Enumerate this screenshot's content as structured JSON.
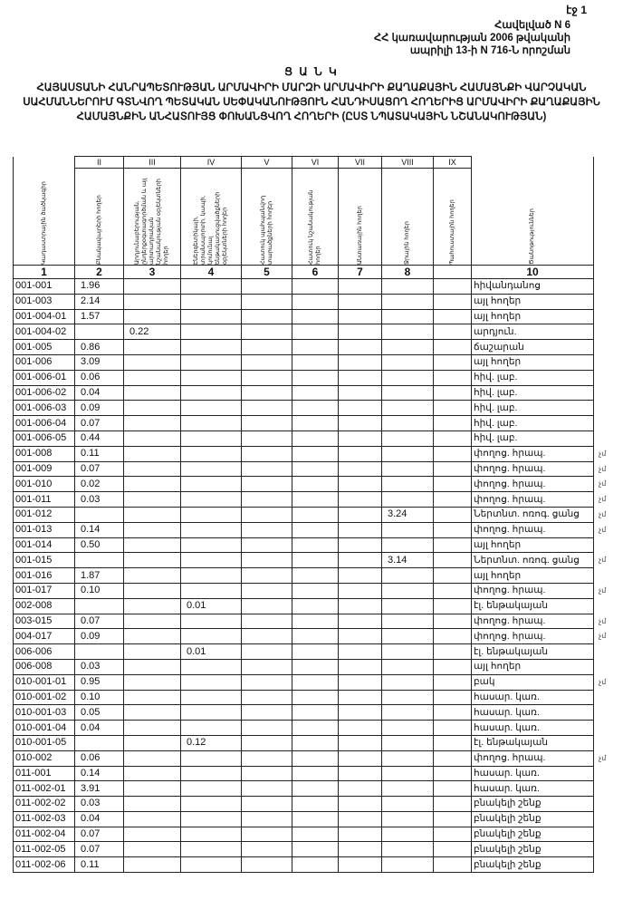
{
  "page_number": "էջ 1",
  "appendix": {
    "line1": "Հավելված N 6",
    "line2": "ՀՀ կառավարության 2006 թվականի",
    "line3": "ապրիլի 13-ի N 716-Ն որոշման"
  },
  "title": "Ց Ա Ն Կ",
  "subtitle": "Հայաստանի Հանրապետության Արմավիրի մարզի Արմավիրի քաղաքային համայնքի վարչական սահմաններում գտնվող պետական սեփականություն հանդիսացող հողերից Արմավիրի քաղաքային համայնքին անհատույց փոխանցվող հողերի (ըստ նպատակային նշանակության)",
  "table": {
    "roman": [
      "",
      "II",
      "III",
      "IV",
      "V",
      "VI",
      "VII",
      "VIII",
      "IX",
      ""
    ],
    "headers": [
      "Կադաստրային ծածկագիր",
      "Բնակավայրերի հողեր",
      "Արդյունաբերության, ընդերքօգտագործման և այլ արտադրական նշանակության օբյեկտների հողեր",
      "Էներգետիկայի, տրանսպորտի, կապի, կոմունալ ենթակառուցվածքների օբյեկտների հողեր",
      "Հատուկ պահպանվող տարածքների հողեր",
      "Հատուկ նշանակության հողեր",
      "Անտառային հողեր",
      "Ջրային հողեր",
      "Պահուստային հողեր",
      "Ծանոթություններ"
    ],
    "numbers": [
      "1",
      "2",
      "3",
      "4",
      "5",
      "6",
      "7",
      "8",
      "",
      "10"
    ],
    "rows": [
      {
        "code": "001-001",
        "col": 2,
        "value": "1.96",
        "note": "հիվանդանոց",
        "mark": ""
      },
      {
        "code": "001-003",
        "col": 2,
        "value": "2.14",
        "note": "այլ հողեր",
        "mark": ""
      },
      {
        "code": "001-004-01",
        "col": 2,
        "value": "1.57",
        "note": "այլ հողեր",
        "mark": ""
      },
      {
        "code": "001-004-02",
        "col": 3,
        "value": "0.22",
        "note": "արդյուն.",
        "mark": ""
      },
      {
        "code": "001-005",
        "col": 2,
        "value": "0.86",
        "note": "ճաշարան",
        "mark": ""
      },
      {
        "code": "001-006",
        "col": 2,
        "value": "3.09",
        "note": "այլ հողեր",
        "mark": ""
      },
      {
        "code": "001-006-01",
        "col": 2,
        "value": "0.06",
        "note": "հիվ. լաբ.",
        "mark": ""
      },
      {
        "code": "001-006-02",
        "col": 2,
        "value": "0.04",
        "note": "հիվ. լաբ.",
        "mark": ""
      },
      {
        "code": "001-006-03",
        "col": 2,
        "value": "0.09",
        "note": "հիվ. լաբ.",
        "mark": ""
      },
      {
        "code": "001-006-04",
        "col": 2,
        "value": "0.07",
        "note": "հիվ. լաբ.",
        "mark": ""
      },
      {
        "code": "001-006-05",
        "col": 2,
        "value": "0.44",
        "note": "հիվ. լաբ.",
        "mark": ""
      },
      {
        "code": "001-008",
        "col": 2,
        "value": "0.11",
        "note": "փողոց. հրապ.",
        "mark": "չմ"
      },
      {
        "code": "001-009",
        "col": 2,
        "value": "0.07",
        "note": "փողոց. հրապ.",
        "mark": "չմ"
      },
      {
        "code": "001-010",
        "col": 2,
        "value": "0.02",
        "note": "փողոց. հրապ.",
        "mark": "չմ"
      },
      {
        "code": "001-011",
        "col": 2,
        "value": "0.03",
        "note": "փողոց. հրապ.",
        "mark": "չմ"
      },
      {
        "code": "001-012",
        "col": 8,
        "value": "3.24",
        "note": "Ներտնտ. ոռոգ. ցանց",
        "mark": "չմ"
      },
      {
        "code": "001-013",
        "col": 2,
        "value": "0.14",
        "note": "փողոց. հրապ.",
        "mark": "չմ"
      },
      {
        "code": "001-014",
        "col": 2,
        "value": "0.50",
        "note": "այլ հողեր",
        "mark": ""
      },
      {
        "code": "001-015",
        "col": 8,
        "value": "3.14",
        "note": "Ներտնտ. ոռոգ. ցանց",
        "mark": "չմ"
      },
      {
        "code": "001-016",
        "col": 2,
        "value": "1.87",
        "note": "այլ հողեր",
        "mark": ""
      },
      {
        "code": "001-017",
        "col": 2,
        "value": "0.10",
        "note": "փողոց. հրապ.",
        "mark": "չմ"
      },
      {
        "code": "002-008",
        "col": 4,
        "value": "0.01",
        "note": "էլ. ենթակայան",
        "mark": ""
      },
      {
        "code": "003-015",
        "col": 2,
        "value": "0.07",
        "note": "փողոց. հրապ.",
        "mark": "չմ"
      },
      {
        "code": "004-017",
        "col": 2,
        "value": "0.09",
        "note": "փողոց. հրապ.",
        "mark": "չմ"
      },
      {
        "code": "006-006",
        "col": 4,
        "value": "0.01",
        "note": "էլ. ենթակայան",
        "mark": ""
      },
      {
        "code": "006-008",
        "col": 2,
        "value": "0.03",
        "note": "այլ հողեր",
        "mark": ""
      },
      {
        "code": "010-001-01",
        "col": 2,
        "value": "0.95",
        "note": "բակ",
        "mark": "չմ"
      },
      {
        "code": "010-001-02",
        "col": 2,
        "value": "0.10",
        "note": "հասար. կառ.",
        "mark": ""
      },
      {
        "code": "010-001-03",
        "col": 2,
        "value": "0.05",
        "note": "հասար. կառ.",
        "mark": ""
      },
      {
        "code": "010-001-04",
        "col": 2,
        "value": "0.04",
        "note": "հասար. կառ.",
        "mark": ""
      },
      {
        "code": "010-001-05",
        "col": 4,
        "value": "0.12",
        "note": "էլ. ենթակայան",
        "mark": ""
      },
      {
        "code": "010-002",
        "col": 2,
        "value": "0.06",
        "note": "փողոց. հրապ.",
        "mark": "չմ"
      },
      {
        "code": "011-001",
        "col": 2,
        "value": "0.14",
        "note": "հասար. կառ.",
        "mark": ""
      },
      {
        "code": "011-002-01",
        "col": 2,
        "value": "3.91",
        "note": "հասար. կառ.",
        "mark": ""
      },
      {
        "code": "011-002-02",
        "col": 2,
        "value": "0.03",
        "note": "բնակելի շենք",
        "mark": ""
      },
      {
        "code": "011-002-03",
        "col": 2,
        "value": "0.04",
        "note": "բնակելի շենք",
        "mark": ""
      },
      {
        "code": "011-002-04",
        "col": 2,
        "value": "0.07",
        "note": "բնակելի շենք",
        "mark": ""
      },
      {
        "code": "011-002-05",
        "col": 2,
        "value": "0.07",
        "note": "բնակելի շենք",
        "mark": ""
      },
      {
        "code": "011-002-06",
        "col": 2,
        "value": "0.11",
        "note": "բնակելի շենք",
        "mark": ""
      }
    ]
  }
}
